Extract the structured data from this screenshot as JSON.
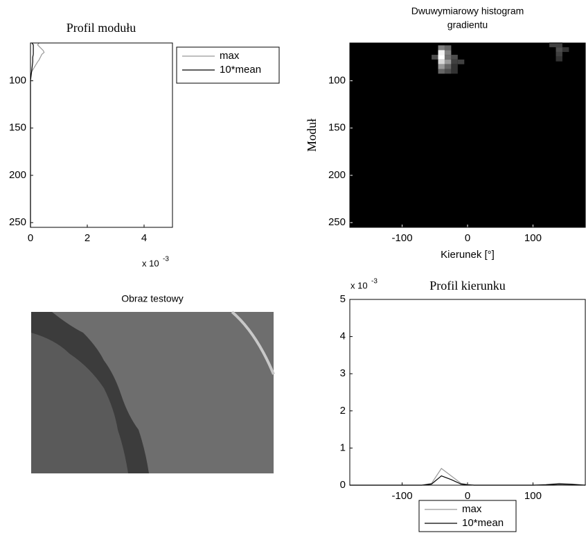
{
  "chart_data": [
    {
      "type": "profile",
      "title": "Profil modułu",
      "y": [
        60,
        62,
        65,
        68,
        70,
        72,
        75,
        78,
        80,
        85,
        90,
        95,
        100,
        255
      ],
      "series": [
        {
          "name": "max",
          "color": "#999999",
          "values": [
            0.3,
            0.25,
            0.35,
            0.45,
            0.48,
            0.4,
            0.35,
            0.3,
            0.25,
            0.15,
            0.05,
            0,
            0,
            0
          ]
        },
        {
          "name": "10*mean",
          "color": "#000000",
          "values": [
            0.05,
            0.1,
            0.1,
            0.1,
            0.1,
            0.1,
            0.08,
            0.08,
            0.08,
            0.06,
            0.04,
            0.02,
            0,
            0
          ]
        }
      ],
      "xlim": [
        0,
        5
      ],
      "xticks": [
        0,
        2,
        4
      ],
      "ylim": [
        60,
        255
      ],
      "yticks": [
        100,
        150,
        200,
        250
      ],
      "y_reversed": true,
      "x_multiplier": {
        "base": "x 10",
        "exponent": "-3"
      },
      "legend": "outside-right"
    },
    {
      "type": "heatmap",
      "title": [
        "Dwuwymiarowy histogram",
        "gradientu"
      ],
      "x_label": "Kierunek [°]",
      "y_label": "Moduł",
      "xlim": [
        -180,
        180
      ],
      "xticks": [
        -100,
        0,
        100
      ],
      "ylim": [
        60,
        255
      ],
      "yticks": [
        100,
        150,
        200,
        250
      ],
      "y_reversed": true,
      "cell_width": 10,
      "cell_height": 5,
      "colormap": "gray",
      "cells": {
        "x": [
          -50,
          -40,
          -40,
          -40,
          -40,
          -40,
          -40,
          -30,
          -30,
          -30,
          -30,
          -30,
          -30,
          -20,
          -20,
          -20,
          -20,
          -10,
          130,
          140,
          140,
          150,
          140,
          140
        ],
        "y": [
          75,
          65,
          70,
          75,
          80,
          85,
          90,
          65,
          70,
          75,
          80,
          85,
          90,
          75,
          80,
          85,
          90,
          80,
          62,
          62,
          67,
          67,
          72,
          77
        ],
        "values": [
          0.3,
          0.5,
          0.95,
          1.0,
          0.85,
          0.6,
          0.4,
          0.4,
          0.5,
          0.45,
          0.6,
          0.4,
          0.3,
          0.3,
          0.25,
          0.2,
          0.2,
          0.25,
          0.25,
          0.25,
          0.3,
          0.2,
          0.25,
          0.2
        ]
      }
    },
    {
      "type": "image",
      "title": "Obraz testowy"
    },
    {
      "type": "line",
      "title": "Profil kierunku",
      "x": [
        -180,
        -100,
        -70,
        -55,
        -40,
        -25,
        -10,
        0,
        10,
        100,
        120,
        140,
        160,
        180
      ],
      "series": [
        {
          "name": "max",
          "color": "#999999",
          "values": [
            0,
            0,
            0,
            0.05,
            0.45,
            0.25,
            0.05,
            0.02,
            0,
            0,
            0.02,
            0.05,
            0.03,
            0
          ]
        },
        {
          "name": "10*mean",
          "color": "#000000",
          "values": [
            0,
            0,
            0,
            0.03,
            0.25,
            0.15,
            0.03,
            0.01,
            0,
            0,
            0.01,
            0.03,
            0.02,
            0
          ]
        }
      ],
      "xlim": [
        -180,
        180
      ],
      "xticks": [
        -100,
        0,
        100
      ],
      "ylim": [
        0,
        5
      ],
      "yticks": [
        0,
        1,
        2,
        3,
        4,
        5
      ],
      "y_multiplier": {
        "base": "x 10",
        "exponent": "-3"
      },
      "legend": "lower-center"
    }
  ]
}
